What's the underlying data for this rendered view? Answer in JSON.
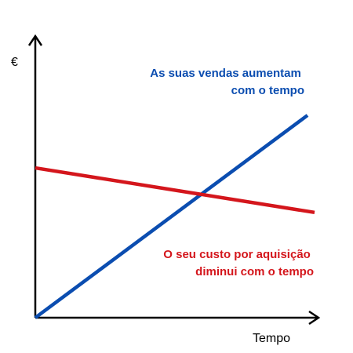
{
  "chart_data": {
    "type": "line",
    "xlabel": "Tempo",
    "ylabel": "€",
    "x": [
      0,
      1
    ],
    "series": [
      {
        "name": "As suas vendas aumentam com o tempo",
        "values": [
          0,
          1
        ],
        "color": "#0B4DB0"
      },
      {
        "name": "O seu custo por aquisição diminui com o tempo",
        "values": [
          0.74,
          0.52
        ],
        "color": "#D4161C"
      }
    ],
    "annotations": [
      {
        "lines": [
          "As suas vendas aumentam",
          "com o tempo"
        ],
        "color": "#0B4DB0"
      },
      {
        "lines": [
          "O seu custo por aquisição",
          "diminui com o tempo"
        ],
        "color": "#D4161C"
      }
    ],
    "grid": false,
    "legend": "none"
  }
}
